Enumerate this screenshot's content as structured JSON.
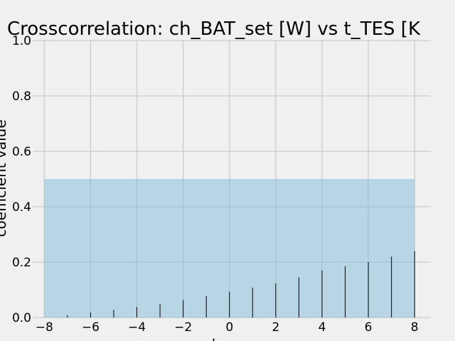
{
  "chart_data": {
    "type": "bar",
    "title": "Crosscorrelation: ch_BAT_set [W] vs t_TES [K",
    "xlabel": "lag",
    "ylabel": "coefficient value",
    "xlim": [
      -8.5,
      8.7
    ],
    "ylim": [
      0,
      1.0
    ],
    "x_ticks": [
      "−8",
      "−6",
      "−4",
      "−2",
      "0",
      "2",
      "4",
      "6",
      "8"
    ],
    "y_ticks": [
      "0.0",
      "0.2",
      "0.4",
      "0.6",
      "0.8",
      "1.0"
    ],
    "grid": true,
    "confidence_band": {
      "x_range": [
        -8,
        8
      ],
      "y_range": [
        0,
        0.5
      ],
      "color": "#b3d6e8"
    },
    "lags": [
      -8,
      -7,
      -6,
      -5,
      -4,
      -3,
      -2,
      -1,
      0,
      1,
      2,
      3,
      4,
      5,
      6,
      7,
      8
    ],
    "values": [
      0.0,
      0.008,
      0.018,
      0.028,
      0.038,
      0.05,
      0.063,
      0.078,
      0.093,
      0.108,
      0.123,
      0.145,
      0.17,
      0.185,
      0.2,
      0.22,
      0.24
    ],
    "colors": {
      "background": "#f0f0f0",
      "grid": "#cbcbcb",
      "stem": "#000000"
    }
  }
}
